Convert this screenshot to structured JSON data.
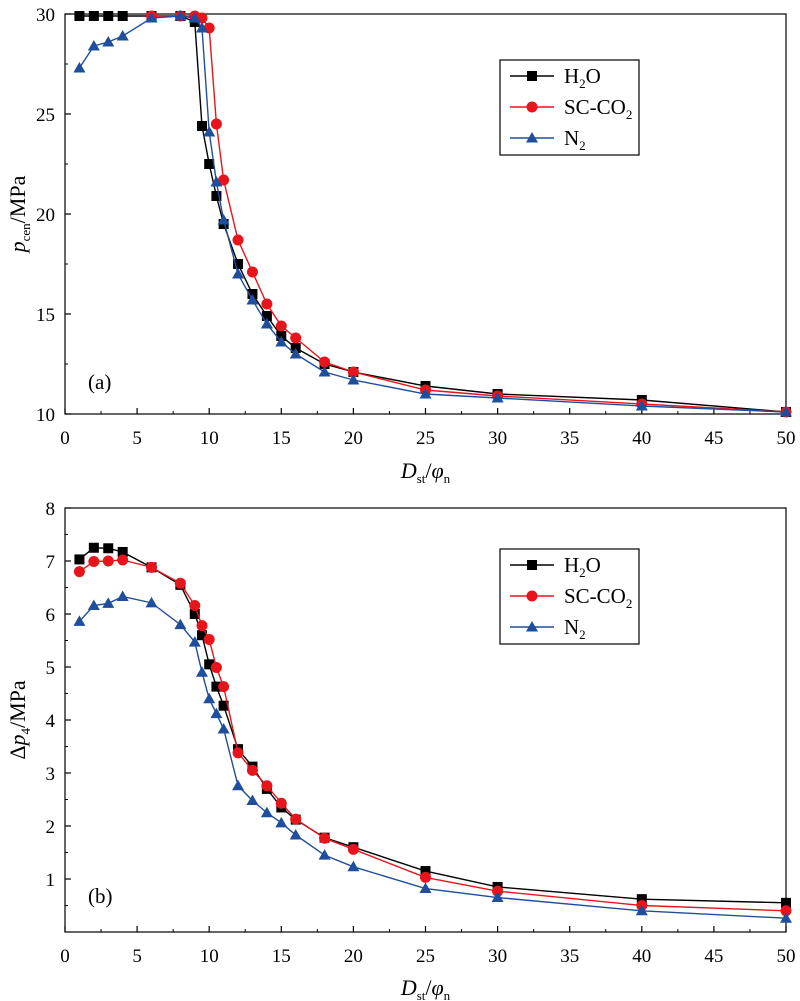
{
  "chart_data": [
    {
      "type": "line",
      "panel_label": "(a)",
      "xlabel": {
        "main": "D",
        "sub": "st",
        "mid": "/",
        "main2": "φ",
        "sub2": "n"
      },
      "ylabel": {
        "main": "p",
        "sub": "cen",
        "rest": "/MPa"
      },
      "xlim": [
        0,
        50
      ],
      "ylim": [
        10,
        30
      ],
      "xticks": [
        0,
        5,
        10,
        15,
        20,
        25,
        30,
        35,
        40,
        45,
        50
      ],
      "yticks": [
        10,
        15,
        20,
        25,
        30
      ],
      "legend_position": "top-right",
      "series": [
        {
          "name": "H2O",
          "label": "H",
          "sub": "2",
          "label_rest": "O",
          "color": "#000000",
          "marker": "square",
          "x": [
            1,
            2,
            3,
            4,
            6,
            8,
            9,
            9.5,
            10,
            10.5,
            11,
            12,
            13,
            14,
            15,
            16,
            18,
            20,
            25,
            30,
            40,
            50
          ],
          "y": [
            29.9,
            29.9,
            29.9,
            29.9,
            29.9,
            29.9,
            29.6,
            24.4,
            22.5,
            20.9,
            19.5,
            17.5,
            16.0,
            14.9,
            13.9,
            13.3,
            12.5,
            12.1,
            11.4,
            11.0,
            10.7,
            10.1
          ]
        },
        {
          "name": "SC-CO2",
          "label": "SC-CO",
          "sub": "2",
          "label_rest": "",
          "color": "#e8141b",
          "marker": "circle",
          "x": [
            6,
            8,
            9,
            9.5,
            10,
            10.5,
            11,
            12,
            13,
            14,
            15,
            16,
            18,
            20,
            25,
            30,
            40,
            50
          ],
          "y": [
            29.9,
            29.9,
            29.9,
            29.8,
            29.3,
            24.5,
            21.7,
            18.7,
            17.1,
            15.5,
            14.4,
            13.8,
            12.6,
            12.1,
            11.2,
            10.9,
            10.5,
            10.1
          ]
        },
        {
          "name": "N2",
          "label": "N",
          "sub": "2",
          "label_rest": "",
          "color": "#1f4e9c",
          "marker": "triangle",
          "x": [
            1,
            2,
            3,
            4,
            6,
            8,
            9,
            9.5,
            10,
            10.5,
            11,
            12,
            13,
            14,
            15,
            16,
            18,
            20,
            25,
            30,
            40,
            50
          ],
          "y": [
            27.3,
            28.4,
            28.6,
            28.9,
            29.8,
            29.9,
            29.8,
            29.3,
            24.1,
            21.6,
            19.7,
            17.0,
            15.7,
            14.5,
            13.6,
            13.0,
            12.1,
            11.7,
            11.0,
            10.8,
            10.4,
            10.1
          ]
        }
      ]
    },
    {
      "type": "line",
      "panel_label": "(b)",
      "xlabel": {
        "main": "D",
        "sub": "st",
        "mid": "/",
        "main2": "φ",
        "sub2": "n"
      },
      "ylabel": {
        "main": "Δp",
        "sub": "4",
        "rest": "/MPa"
      },
      "xlim": [
        0,
        50
      ],
      "ylim": [
        0,
        8
      ],
      "xticks": [
        0,
        5,
        10,
        15,
        20,
        25,
        30,
        35,
        40,
        45,
        50
      ],
      "yticks": [
        1,
        2,
        3,
        4,
        5,
        6,
        7,
        8
      ],
      "legend_position": "top-right",
      "series": [
        {
          "name": "H2O",
          "label": "H",
          "sub": "2",
          "label_rest": "O",
          "color": "#000000",
          "marker": "square",
          "x": [
            1,
            2,
            3,
            4,
            6,
            8,
            9,
            9.5,
            10,
            10.5,
            11,
            12,
            13,
            14,
            15,
            16,
            18,
            20,
            25,
            30,
            40,
            50
          ],
          "y": [
            7.03,
            7.25,
            7.24,
            7.17,
            6.88,
            6.55,
            6.0,
            5.6,
            5.05,
            4.63,
            4.27,
            3.45,
            3.12,
            2.7,
            2.35,
            2.12,
            1.78,
            1.6,
            1.15,
            0.85,
            0.62,
            0.55
          ]
        },
        {
          "name": "SC-CO2",
          "label": "SC-CO",
          "sub": "2",
          "label_rest": "",
          "color": "#e8141b",
          "marker": "circle",
          "x": [
            1,
            2,
            3,
            4,
            6,
            8,
            9,
            9.5,
            10,
            10.5,
            11,
            12,
            13,
            14,
            15,
            16,
            18,
            20,
            25,
            30,
            40,
            50
          ],
          "y": [
            6.8,
            6.99,
            7.0,
            7.02,
            6.88,
            6.58,
            6.16,
            5.78,
            5.52,
            4.99,
            4.63,
            3.38,
            3.05,
            2.76,
            2.43,
            2.13,
            1.77,
            1.56,
            1.03,
            0.77,
            0.5,
            0.4
          ]
        },
        {
          "name": "N2",
          "label": "N",
          "sub": "2",
          "label_rest": "",
          "color": "#1f4e9c",
          "marker": "triangle",
          "x": [
            1,
            2,
            3,
            4,
            6,
            8,
            9,
            9.5,
            10,
            10.5,
            11,
            12,
            13,
            14,
            15,
            16,
            18,
            20,
            25,
            30,
            40,
            50
          ],
          "y": [
            5.86,
            6.16,
            6.2,
            6.33,
            6.21,
            5.8,
            5.47,
            4.9,
            4.4,
            4.12,
            3.83,
            2.76,
            2.48,
            2.25,
            2.06,
            1.83,
            1.45,
            1.23,
            0.82,
            0.65,
            0.4,
            0.26
          ]
        }
      ]
    }
  ]
}
